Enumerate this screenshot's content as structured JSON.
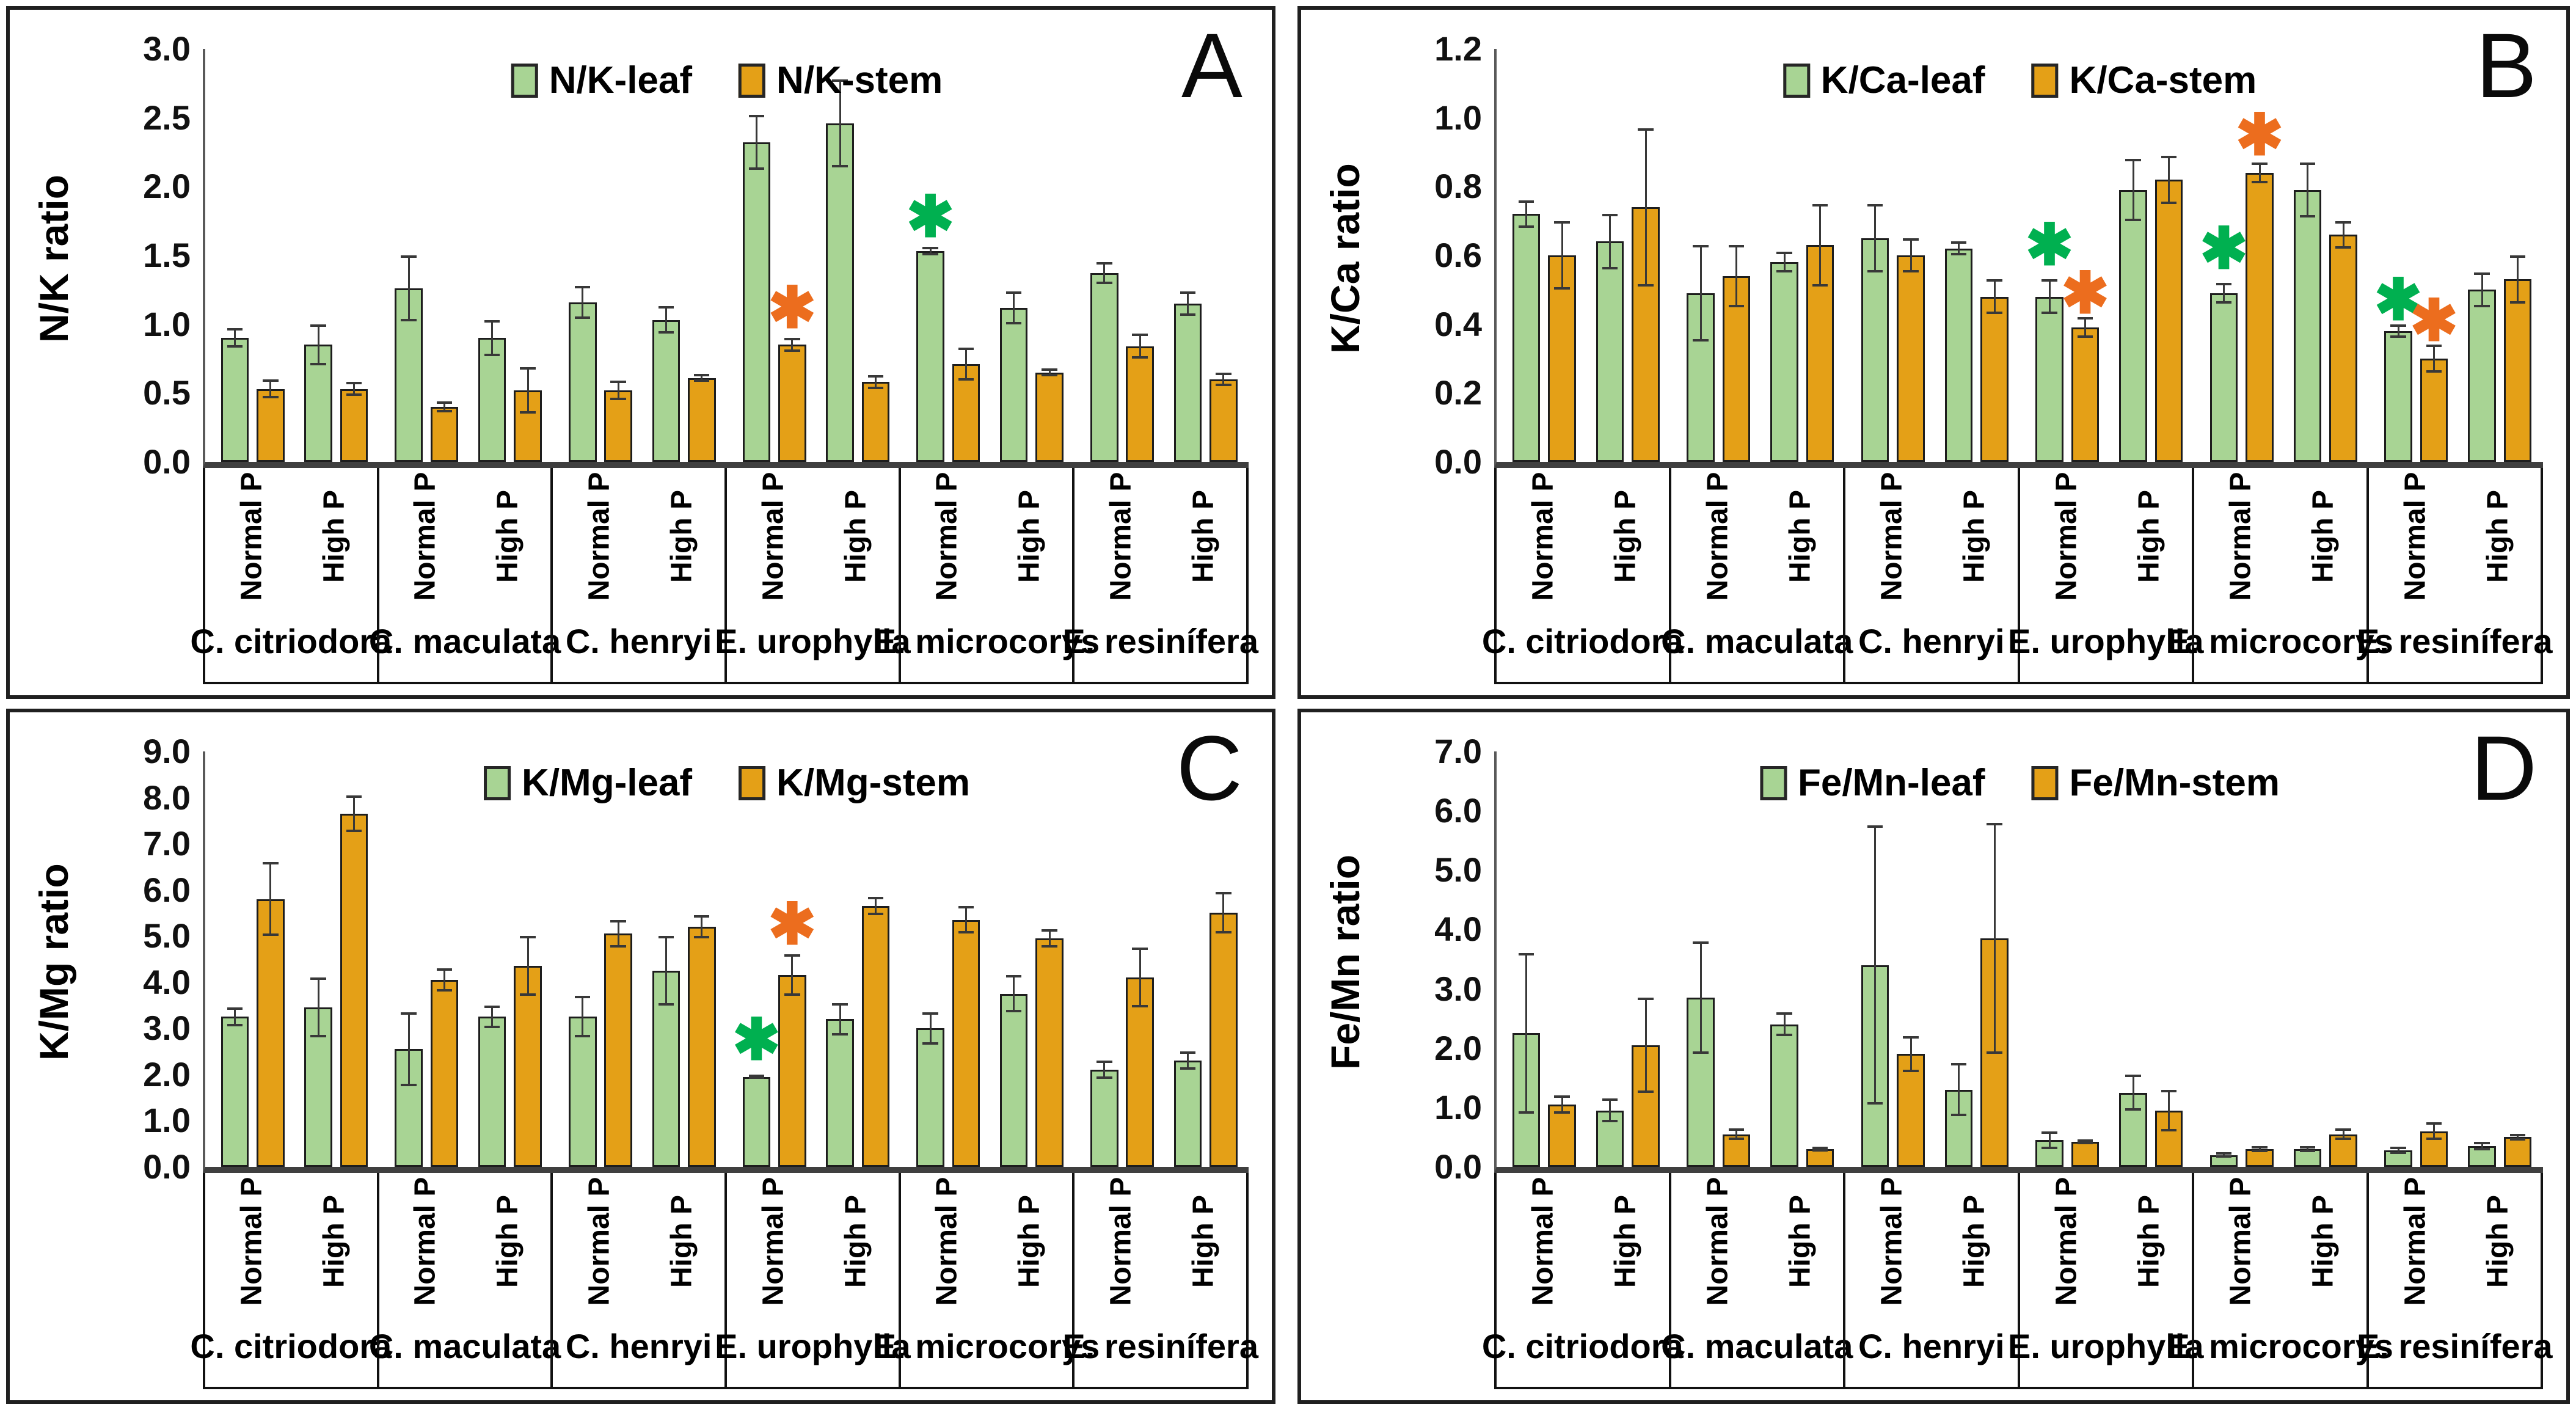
{
  "figure_name": "leaf-vs-stem nutrient ratio bar charts",
  "colors": {
    "leaf_fill": "#A8D494",
    "stem_fill": "#E4A017",
    "bar_border": "#1d1d1d",
    "asterisk_green": "#00B050",
    "asterisk_orange": "#EC6D1E",
    "axis_line": "#3f3f3f",
    "error_bar": "#383838"
  },
  "glyphs": {
    "asterisk": "✱",
    "legend_swatch": "square"
  },
  "x_structure": {
    "treatments": [
      "Normal P",
      "High P"
    ],
    "species": [
      "C. citriodora",
      "C. maculata",
      "C. henryi",
      "E. urophylla",
      "E. microcorys",
      "E. resinífera"
    ]
  },
  "chart_data": [
    {
      "letter": "A",
      "type": "bar",
      "ylabel": "N/K ratio",
      "ylim": [
        0,
        3.0
      ],
      "ytick_step": 0.5,
      "grid": false,
      "legend_position": "top-center",
      "categories": [
        "C. citriodora Normal P",
        "C. citriodora High P",
        "C. maculata Normal P",
        "C. maculata High P",
        "C. henryi Normal P",
        "C. henryi High P",
        "E. urophylla Normal P",
        "E. urophylla High P",
        "E. microcorys Normal P",
        "E. microcorys High P",
        "E. resinífera Normal P",
        "E. resinífera High P"
      ],
      "series": [
        {
          "name": "N/K-leaf",
          "values": [
            0.9,
            0.85,
            1.26,
            0.9,
            1.16,
            1.03,
            2.32,
            2.46,
            1.53,
            1.12,
            1.37,
            1.15
          ],
          "errors": [
            0.07,
            0.15,
            0.24,
            0.13,
            0.12,
            0.1,
            0.2,
            0.32,
            0.03,
            0.12,
            0.08,
            0.09
          ]
        },
        {
          "name": "N/K-stem",
          "values": [
            0.53,
            0.53,
            0.4,
            0.52,
            0.52,
            0.61,
            0.85,
            0.58,
            0.71,
            0.65,
            0.84,
            0.6
          ],
          "errors": [
            0.07,
            0.05,
            0.04,
            0.17,
            0.07,
            0.03,
            0.05,
            0.05,
            0.12,
            0.03,
            0.09,
            0.05
          ]
        }
      ],
      "significance": [
        {
          "species": "E. urophylla",
          "treatment": "Normal P",
          "series": "stem",
          "color": "orange",
          "y": 1.12
        },
        {
          "species": "E. microcorys",
          "treatment": "Normal P",
          "series": "leaf",
          "color": "green",
          "y": 1.78
        }
      ]
    },
    {
      "letter": "B",
      "type": "bar",
      "ylabel": "K/Ca ratio",
      "ylim": [
        0,
        1.2
      ],
      "ytick_step": 0.2,
      "grid": false,
      "legend_position": "top-center",
      "categories": [
        "C. citriodora Normal P",
        "C. citriodora High P",
        "C. maculata Normal P",
        "C. maculata High P",
        "C. henryi Normal P",
        "C. henryi High P",
        "E. urophylla Normal P",
        "E. urophylla High P",
        "E. microcorys Normal P",
        "E. microcorys High P",
        "E. resinífera Normal P",
        "E. resinífera High P"
      ],
      "series": [
        {
          "name": "K/Ca-leaf",
          "values": [
            0.72,
            0.64,
            0.49,
            0.58,
            0.65,
            0.62,
            0.48,
            0.79,
            0.49,
            0.79,
            0.38,
            0.5
          ],
          "errors": [
            0.04,
            0.08,
            0.14,
            0.03,
            0.1,
            0.02,
            0.05,
            0.09,
            0.03,
            0.08,
            0.02,
            0.05
          ]
        },
        {
          "name": "K/Ca-stem",
          "values": [
            0.6,
            0.74,
            0.54,
            0.63,
            0.6,
            0.48,
            0.39,
            0.82,
            0.84,
            0.66,
            0.3,
            0.53
          ],
          "errors": [
            0.1,
            0.23,
            0.09,
            0.12,
            0.05,
            0.05,
            0.03,
            0.07,
            0.03,
            0.04,
            0.04,
            0.07
          ]
        }
      ],
      "significance": [
        {
          "species": "E. urophylla",
          "treatment": "Normal P",
          "series": "leaf",
          "color": "green",
          "y": 0.63
        },
        {
          "species": "E. urophylla",
          "treatment": "Normal P",
          "series": "stem",
          "color": "orange",
          "y": 0.49
        },
        {
          "species": "E. microcorys",
          "treatment": "Normal P",
          "series": "leaf",
          "color": "green",
          "y": 0.62
        },
        {
          "species": "E. microcorys",
          "treatment": "Normal P",
          "series": "stem",
          "color": "orange",
          "y": 0.95
        },
        {
          "species": "E. resinífera",
          "treatment": "Normal P",
          "series": "leaf",
          "color": "green",
          "y": 0.47
        },
        {
          "species": "E. resinífera",
          "treatment": "Normal P",
          "series": "stem",
          "color": "orange",
          "y": 0.41
        }
      ]
    },
    {
      "letter": "C",
      "type": "bar",
      "ylabel": "K/Mg ratio",
      "ylim": [
        0,
        9.0
      ],
      "ytick_step": 1.0,
      "grid": false,
      "legend_position": "top-center",
      "categories": [
        "C. citriodora Normal P",
        "C. citriodora High P",
        "C. maculata Normal P",
        "C. maculata High P",
        "C. henryi Normal P",
        "C. henryi High P",
        "E. urophylla Normal P",
        "E. urophylla High P",
        "E. microcorys Normal P",
        "E. microcorys High P",
        "E. resinífera Normal P",
        "E. resinífera High P"
      ],
      "series": [
        {
          "name": "K/Mg-leaf",
          "values": [
            3.25,
            3.45,
            2.55,
            3.25,
            3.25,
            4.25,
            1.95,
            3.2,
            3.0,
            3.75,
            2.1,
            2.3
          ],
          "errors": [
            0.2,
            0.65,
            0.8,
            0.25,
            0.45,
            0.75,
            0.05,
            0.35,
            0.35,
            0.4,
            0.2,
            0.2
          ]
        },
        {
          "name": "K/Mg-stem",
          "values": [
            5.8,
            7.65,
            4.05,
            4.35,
            5.05,
            5.2,
            4.15,
            5.65,
            5.35,
            4.95,
            4.1,
            5.5
          ],
          "errors": [
            0.8,
            0.4,
            0.25,
            0.65,
            0.3,
            0.25,
            0.45,
            0.2,
            0.3,
            0.2,
            0.65,
            0.45
          ]
        }
      ],
      "significance": [
        {
          "species": "E. urophylla",
          "treatment": "Normal P",
          "series": "leaf",
          "color": "green",
          "y": 2.75
        },
        {
          "species": "E. urophylla",
          "treatment": "Normal P",
          "series": "stem",
          "color": "orange",
          "y": 5.25
        }
      ]
    },
    {
      "letter": "D",
      "type": "bar",
      "ylabel": "Fe/Mn ratio",
      "ylim": [
        0,
        7.0
      ],
      "ytick_step": 1.0,
      "grid": false,
      "legend_position": "top-center",
      "categories": [
        "C. citriodora Normal P",
        "C. citriodora High P",
        "C. maculata Normal P",
        "C. maculata High P",
        "C. henryi Normal P",
        "C. henryi High P",
        "E. urophylla Normal P",
        "E. urophylla High P",
        "E. microcorys Normal P",
        "E. microcorys High P",
        "E. resinífera Normal P",
        "E. resinífera High P"
      ],
      "series": [
        {
          "name": "Fe/Mn-leaf",
          "values": [
            2.25,
            0.95,
            2.85,
            2.4,
            3.4,
            1.3,
            0.45,
            1.25,
            0.2,
            0.3,
            0.28,
            0.35
          ],
          "errors": [
            1.35,
            0.2,
            0.95,
            0.2,
            2.35,
            0.45,
            0.15,
            0.3,
            0.05,
            0.05,
            0.06,
            0.07
          ]
        },
        {
          "name": "Fe/Mn-stem",
          "values": [
            1.05,
            2.05,
            0.55,
            0.3,
            1.9,
            3.85,
            0.42,
            0.95,
            0.3,
            0.55,
            0.6,
            0.5
          ],
          "errors": [
            0.15,
            0.8,
            0.1,
            0.04,
            0.3,
            1.95,
            0.04,
            0.35,
            0.05,
            0.1,
            0.15,
            0.06
          ]
        }
      ],
      "significance": []
    }
  ]
}
